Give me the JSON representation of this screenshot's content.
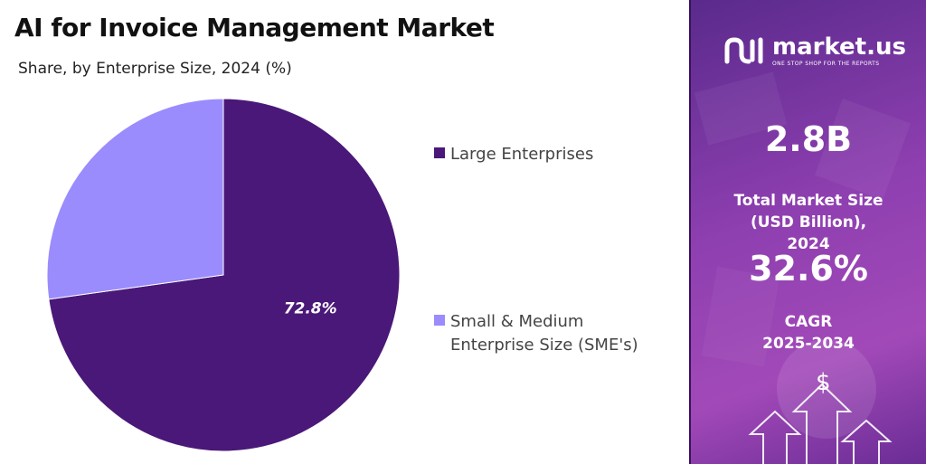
{
  "title": "AI for Invoice Management Market",
  "subtitle": "Share, by Enterprise Size, 2024 (%)",
  "chart_data": {
    "type": "pie",
    "title": "AI for Invoice Management Market",
    "subtitle": "Share, by Enterprise Size, 2024 (%)",
    "categories": [
      "Large Enterprises",
      "Small & Medium Enterprise Size (SME's)"
    ],
    "values": [
      72.8,
      27.2
    ],
    "data_labels": [
      "72.8%",
      ""
    ],
    "colors": [
      "#4a1878",
      "#9a8cfc"
    ],
    "legend_placement": "right"
  },
  "legend": [
    {
      "label": "Large Enterprises",
      "color": "#4a1878"
    },
    {
      "label": "Small & Medium Enterprise Size (SME's)",
      "color": "#9a8cfc"
    }
  ],
  "sidebar": {
    "brand": "market.us",
    "tagline": "ONE STOP SHOP FOR THE REPORTS",
    "market_size_value": "2.8B",
    "market_size_label": "Total Market Size (USD Billion), 2024",
    "cagr_value": "32.6%",
    "cagr_label": "CAGR",
    "cagr_period": "2025-2034",
    "icon": "dollar-sign-icon"
  },
  "colors": {
    "sidebar_accent": "#8e3fb0",
    "dark_purple": "#4a1878",
    "light_purple": "#9a8cfc"
  }
}
